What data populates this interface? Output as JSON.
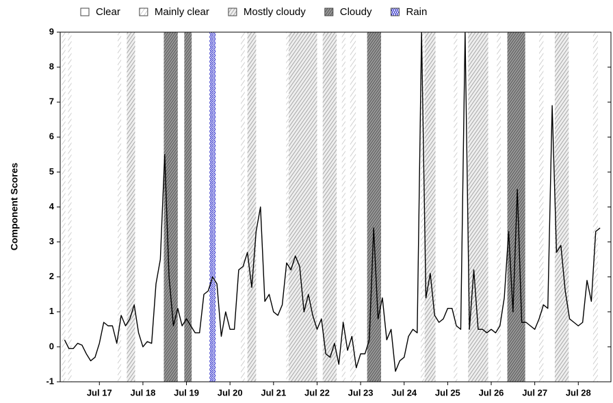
{
  "chart_data": {
    "type": "line",
    "y_label": "Component Scores",
    "x": [
      16.7,
      16.8,
      16.9,
      17.0,
      17.1,
      17.2,
      17.3,
      17.4,
      17.5,
      17.6,
      17.7,
      17.8,
      17.9,
      18.0,
      18.1,
      18.2,
      18.3,
      18.4,
      18.5,
      18.6,
      18.7,
      18.8,
      18.9,
      19.0,
      19.1,
      19.2,
      19.3,
      19.4,
      19.5,
      19.6,
      19.7,
      19.8,
      19.9,
      20.0,
      20.1,
      20.2,
      20.3,
      20.4,
      20.5,
      20.6,
      20.7,
      20.8,
      20.9,
      21.0,
      21.1,
      21.2,
      21.3,
      21.4,
      21.5,
      21.6,
      21.7,
      21.8,
      21.9,
      22.0,
      22.1,
      22.2,
      22.3,
      22.4,
      22.5,
      22.6,
      22.7,
      22.8,
      22.9,
      23.0,
      23.1,
      23.2,
      23.3,
      23.4,
      23.5,
      23.6,
      23.7,
      23.8,
      23.9,
      24.0,
      24.1,
      24.2,
      24.3,
      24.4,
      24.5,
      24.6,
      24.7,
      24.8,
      24.9,
      25.0,
      25.1,
      25.2,
      25.3,
      25.4,
      25.5,
      25.6,
      25.7,
      25.8,
      25.9,
      26.0,
      26.1,
      26.2,
      26.3,
      26.4,
      26.5,
      26.6,
      26.7,
      26.8,
      26.9,
      27.0,
      27.1,
      27.2,
      27.3,
      27.4,
      27.5,
      27.6,
      27.7,
      27.8,
      27.9,
      28.0,
      28.1,
      28.2,
      28.3,
      28.4,
      28.5,
      28.6,
      28.7,
      28.8,
      28.9,
      29.0
    ],
    "series": [
      {
        "color": "#000000",
        "values": [
          0.2,
          -0.05,
          -0.05,
          0.1,
          0.05,
          -0.2,
          -0.4,
          -0.3,
          0.1,
          0.7,
          0.6,
          0.6,
          0.1,
          0.9,
          0.6,
          0.8,
          1.2,
          0.4,
          0,
          0.15,
          0.1,
          1.8,
          2.5,
          5.5,
          2.0,
          0.6,
          1.1,
          0.6,
          0.8,
          0.6,
          0.4,
          0.4,
          1.5,
          1.6,
          2.0,
          1.8,
          0.3,
          1.0,
          0.5,
          0.5,
          2.2,
          2.3,
          2.7,
          1.7,
          3.3,
          4.0,
          1.3,
          1.5,
          1.0,
          0.9,
          1.2,
          2.4,
          2.2,
          2.6,
          2.3,
          1.0,
          1.5,
          0.9,
          0.5,
          0.8,
          -0.2,
          -0.3,
          0.1,
          -0.5,
          0.7,
          -0.1,
          0.3,
          -0.6,
          -0.2,
          -0.2,
          0.2,
          3.4,
          0.8,
          1.4,
          0.2,
          0.5,
          -0.7,
          -0.4,
          -0.3,
          0.3,
          0.5,
          0.4,
          9,
          1.4,
          2.1,
          0.9,
          0.7,
          0.8,
          1.1,
          1.1,
          0.6,
          0.5,
          9,
          0.5,
          2.2,
          0.5,
          0.5,
          0.4,
          0.5,
          0.4,
          0.6,
          1.4,
          3.3,
          1.0,
          4.5,
          0.7,
          0.7,
          0.6,
          0.5,
          0.8,
          1.2,
          1.1,
          6.9,
          2.7,
          2.9,
          1.6,
          0.8,
          0.7,
          0.6,
          0.7,
          1.9,
          1.3,
          3.3,
          3.4
        ]
      }
    ],
    "weather": [
      {
        "name": "Clear",
        "pattern": "none",
        "spans": []
      },
      {
        "name": "Mainly clear",
        "pattern": "light",
        "spans": [
          [
            16.64,
            16.72
          ],
          [
            16.78,
            16.86
          ],
          [
            17.92,
            18.0
          ],
          [
            20.75,
            20.84
          ],
          [
            21.79,
            21.85
          ],
          [
            23.07,
            23.15
          ],
          [
            23.26,
            23.39
          ],
          [
            24.88,
            24.96
          ],
          [
            25.64,
            25.72
          ],
          [
            26.63,
            26.72
          ],
          [
            27.6,
            27.7
          ],
          [
            28.84,
            28.95
          ]
        ]
      },
      {
        "name": "Mostly cloudy",
        "pattern": "medium",
        "spans": [
          [
            18.13,
            18.32
          ],
          [
            20.9,
            21.1
          ],
          [
            21.85,
            22.5
          ],
          [
            22.63,
            22.95
          ],
          [
            24.97,
            25.22
          ],
          [
            25.97,
            26.43
          ],
          [
            27.96,
            28.28
          ]
        ]
      },
      {
        "name": "Cloudy",
        "pattern": "dark",
        "spans": [
          [
            18.98,
            19.3
          ],
          [
            19.45,
            19.62
          ],
          [
            23.65,
            23.97
          ],
          [
            26.87,
            27.28
          ]
        ]
      },
      {
        "name": "Rain",
        "pattern": "rain",
        "spans": [
          [
            20.03,
            20.17
          ]
        ]
      }
    ],
    "xlim": [
      16.6,
      29.25
    ],
    "xticks": [
      {
        "value": 17.5,
        "label": "Jul 17"
      },
      {
        "value": 18.5,
        "label": "Jul 18"
      },
      {
        "value": 19.5,
        "label": "Jul 19"
      },
      {
        "value": 20.5,
        "label": "Jul 20"
      },
      {
        "value": 21.5,
        "label": "Jul 21"
      },
      {
        "value": 22.5,
        "label": "Jul 22"
      },
      {
        "value": 23.5,
        "label": "Jul 23"
      },
      {
        "value": 24.5,
        "label": "Jul 24"
      },
      {
        "value": 25.5,
        "label": "Jul 25"
      },
      {
        "value": 26.5,
        "label": "Jul 26"
      },
      {
        "value": 27.5,
        "label": "Jul 27"
      },
      {
        "value": 28.5,
        "label": "Jul 28"
      }
    ],
    "ylim": [
      -1,
      9
    ],
    "yticks": [
      -1,
      0,
      1,
      2,
      3,
      4,
      5,
      6,
      7,
      8,
      9
    ]
  }
}
